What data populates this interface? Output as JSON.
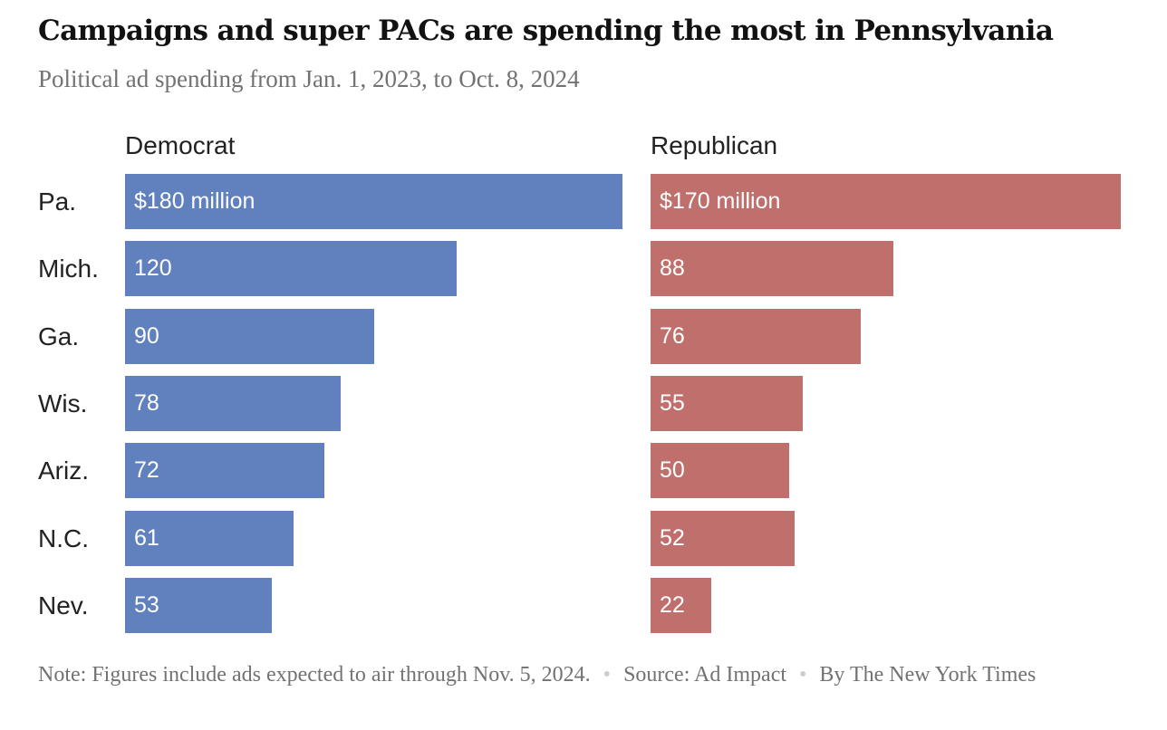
{
  "title": "Campaigns and super PACs are spending the most in Pennsylvania",
  "subtitle": "Political ad spending from Jan. 1, 2023, to Oct. 8, 2024",
  "footer": {
    "note": "Note: Figures include ads expected to air through Nov. 5, 2024.",
    "source": "Source: Ad Impact",
    "byline": "By The New York Times"
  },
  "chart_data": {
    "type": "bar",
    "orientation": "horizontal",
    "categories": [
      "Pa.",
      "Mich.",
      "Ga.",
      "Wis.",
      "Ariz.",
      "N.C.",
      "Nev."
    ],
    "unit": "million dollars",
    "series": [
      {
        "name": "Democrat",
        "color": "#6081bd",
        "values": [
          180,
          120,
          90,
          78,
          72,
          61,
          53
        ],
        "labels": [
          "$180 million",
          "120",
          "90",
          "78",
          "72",
          "61",
          "53"
        ]
      },
      {
        "name": "Republican",
        "color": "#c0706c",
        "values": [
          170,
          88,
          76,
          55,
          50,
          52,
          22
        ],
        "labels": [
          "$170 million",
          "88",
          "76",
          "55",
          "50",
          "52",
          "22"
        ]
      }
    ]
  }
}
